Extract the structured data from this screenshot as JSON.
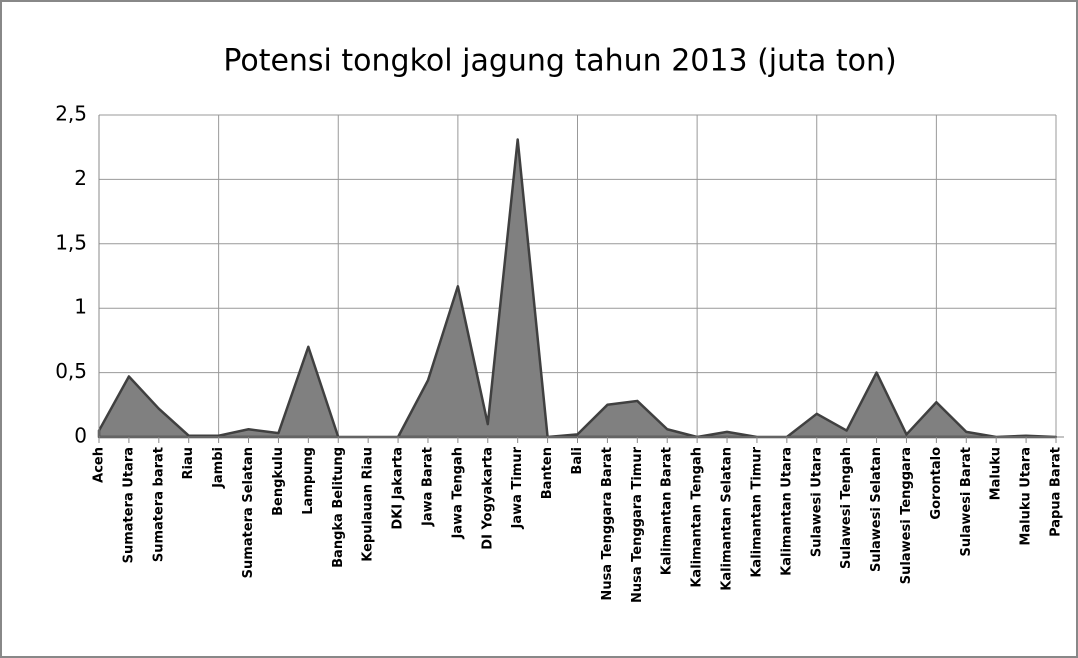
{
  "chart_data": {
    "type": "area",
    "title": "Potensi tongkol jagung tahun 2013 (juta ton)",
    "categories": [
      "Aceh",
      "Sumatera Utara",
      "Sumatera barat",
      "Riau",
      "Jambi",
      "Sumatera Selatan",
      "Bengkulu",
      "Lampung",
      "Bangka Belitung",
      "Kepulauan Riau",
      "DKI Jakarta",
      "Jawa Barat",
      "Jawa Tengah",
      "DI Yogyakarta",
      "Jawa Timur",
      "Banten",
      "Bali",
      "Nusa Tenggara Barat",
      "Nusa Tenggara Timur",
      "Kalimantan Barat",
      "Kalimantan Tengah",
      "Kalimantan Selatan",
      "Kalimantan Timur",
      "Kalimantan Utara",
      "Sulawesi Utara",
      "Sulawesi Tengah",
      "Sulawesi Selatan",
      "Sulawesi Tenggara",
      "Gorontalo",
      "Sulawesi Barat",
      "Maluku",
      "Maluku Utara",
      "Papua Barat"
    ],
    "values": [
      0.05,
      0.47,
      0.22,
      0.01,
      0.01,
      0.06,
      0.03,
      0.7,
      0,
      0,
      0,
      0.44,
      1.17,
      0.1,
      2.31,
      0,
      0.02,
      0.25,
      0.28,
      0.06,
      0,
      0.04,
      0,
      0,
      0.18,
      0.05,
      0.5,
      0.02,
      0.27,
      0.04,
      0,
      0.01,
      0
    ],
    "color": "#808080",
    "line_color": "#404040",
    "ylim": [
      0,
      2.5
    ],
    "yticks": [
      0,
      {
        "value": 0.5,
        "label": "0,5"
      },
      1,
      {
        "value": 1.5,
        "label": "1,5"
      },
      2,
      {
        "value": 2.5,
        "label": "2,5"
      }
    ],
    "grid": true
  }
}
